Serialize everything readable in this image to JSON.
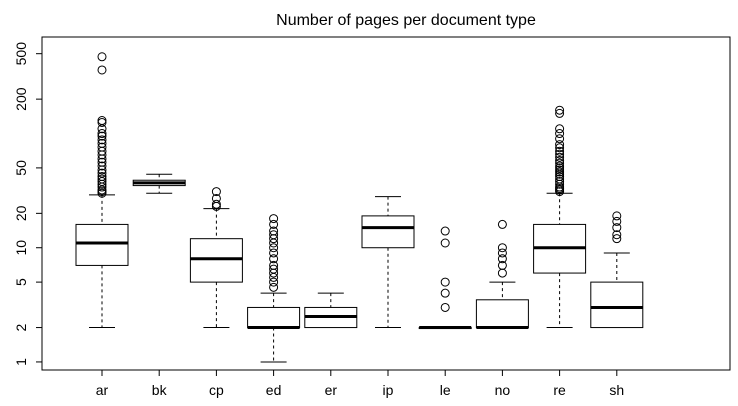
{
  "chart_data": {
    "type": "boxplot",
    "title": "Number of pages per document type",
    "xlabel": "",
    "ylabel": "",
    "y_scale": "log",
    "ylim": [
      0.85,
      700
    ],
    "yticks": [
      1,
      2,
      5,
      10,
      20,
      50,
      200,
      500
    ],
    "ytick_labels": [
      "1",
      "2",
      "5",
      "10",
      "20",
      "50",
      "200",
      "500"
    ],
    "grid": false,
    "categories": [
      "ar",
      "bk",
      "cp",
      "ed",
      "er",
      "ip",
      "le",
      "no",
      "re",
      "sh"
    ],
    "boxes": [
      {
        "name": "ar",
        "whisker_low": 2,
        "q1": 7,
        "median": 11,
        "q3": 16,
        "whisker_high": 29,
        "outliers": [
          470,
          360,
          130,
          125,
          110,
          100,
          95,
          88,
          82,
          76,
          70,
          65,
          60,
          56,
          52,
          48,
          45,
          42,
          40,
          38,
          36,
          34,
          32,
          31,
          30
        ]
      },
      {
        "name": "bk",
        "whisker_low": 30,
        "q1": 35,
        "median": 37,
        "q3": 39,
        "whisker_high": 44,
        "outliers": []
      },
      {
        "name": "cp",
        "whisker_low": 2,
        "q1": 5,
        "median": 8,
        "q3": 12,
        "whisker_high": 22,
        "outliers": [
          31,
          27,
          24,
          23
        ]
      },
      {
        "name": "ed",
        "whisker_low": 1,
        "q1": 2,
        "median": 2,
        "q3": 3,
        "whisker_high": 4,
        "outliers": [
          18,
          16,
          14,
          13,
          12,
          11,
          10,
          9,
          8,
          7,
          6.5,
          6,
          5.5,
          5,
          4.5
        ]
      },
      {
        "name": "er",
        "whisker_low": 2,
        "q1": 2,
        "median": 2.5,
        "q3": 3,
        "whisker_high": 4,
        "outliers": []
      },
      {
        "name": "ip",
        "whisker_low": 2,
        "q1": 10,
        "median": 15,
        "q3": 19,
        "whisker_high": 28,
        "outliers": []
      },
      {
        "name": "le",
        "whisker_low": 2,
        "q1": 2,
        "median": 2,
        "q3": 2,
        "whisker_high": 2,
        "outliers": [
          14,
          11,
          5,
          4,
          3
        ]
      },
      {
        "name": "no",
        "whisker_low": 2,
        "q1": 2,
        "median": 2,
        "q3": 3.5,
        "whisker_high": 5,
        "outliers": [
          16,
          10,
          9,
          8,
          7,
          6
        ]
      },
      {
        "name": "re",
        "whisker_low": 2,
        "q1": 6,
        "median": 10,
        "q3": 16,
        "whisker_high": 30,
        "outliers": [
          160,
          150,
          110,
          100,
          90,
          80,
          75,
          70,
          66,
          62,
          58,
          55,
          52,
          50,
          48,
          46,
          44,
          42,
          40,
          38,
          36,
          34,
          33,
          32,
          31
        ]
      },
      {
        "name": "sh",
        "whisker_low": 2,
        "q1": 2,
        "median": 3,
        "q3": 5,
        "whisker_high": 9,
        "outliers": [
          19,
          17,
          15,
          13,
          12
        ]
      }
    ]
  }
}
